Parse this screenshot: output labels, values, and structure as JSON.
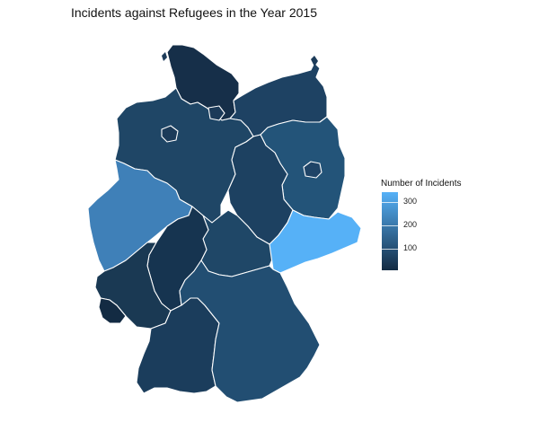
{
  "title": "Incidents against Refugees in the Year 2015",
  "legend": {
    "title": "Number of Incidents",
    "ticks": [
      {
        "value": 300,
        "label": "300"
      },
      {
        "value": 200,
        "label": "200"
      },
      {
        "value": 100,
        "label": "100"
      }
    ],
    "range": [
      10,
      340
    ],
    "colors": {
      "low": "#132B43",
      "high": "#56B1F7"
    }
  },
  "regions": [
    {
      "name": "Schleswig-Holstein",
      "color": "#162f49"
    },
    {
      "name": "Hamburg",
      "color": "#1c3a58"
    },
    {
      "name": "Mecklenburg-Vorpommern",
      "color": "#1e4263"
    },
    {
      "name": "Bremen",
      "color": "#1c3b59"
    },
    {
      "name": "Niedersachsen",
      "color": "#1f4666"
    },
    {
      "name": "Berlin",
      "color": "#1f4467"
    },
    {
      "name": "Brandenburg",
      "color": "#235479"
    },
    {
      "name": "Sachsen-Anhalt",
      "color": "#1d4161"
    },
    {
      "name": "Nordrhein-Westfalen",
      "color": "#3f80b8"
    },
    {
      "name": "Thüringen",
      "color": "#1f4767"
    },
    {
      "name": "Sachsen",
      "color": "#56b1f7"
    },
    {
      "name": "Hessen",
      "color": "#163450"
    },
    {
      "name": "Rheinland-Pfalz",
      "color": "#1a3953"
    },
    {
      "name": "Saarland",
      "color": "#132b43"
    },
    {
      "name": "Baden-Württemberg",
      "color": "#1b3d5c"
    },
    {
      "name": "Bayern",
      "color": "#224e72"
    }
  ]
}
